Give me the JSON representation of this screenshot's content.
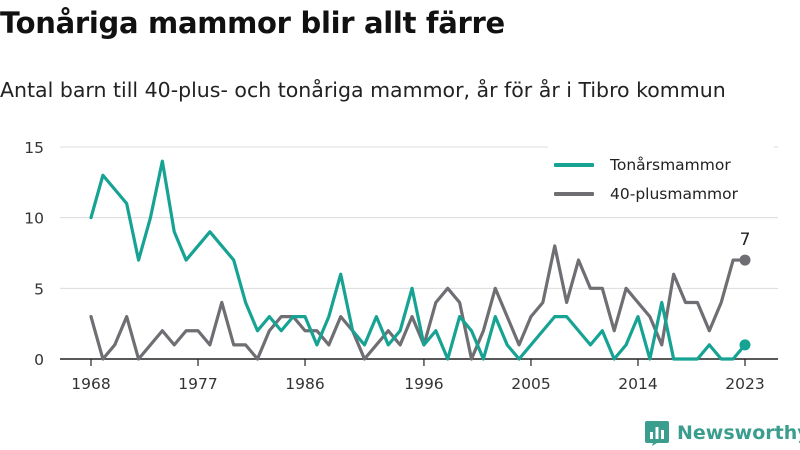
{
  "title": "Tonåriga mammor blir allt färre",
  "subtitle": "Antal barn till 40-plus- och tonåriga mammor, år för år i Tibro kommun",
  "brand": {
    "name": "Newsworthy",
    "icon": "bar-chart-logo-icon",
    "color": "#3b9d8e"
  },
  "chart_data": {
    "type": "line",
    "x": [
      1968,
      1969,
      1970,
      1971,
      1972,
      1973,
      1974,
      1975,
      1976,
      1977,
      1978,
      1979,
      1980,
      1981,
      1982,
      1983,
      1984,
      1985,
      1986,
      1987,
      1988,
      1989,
      1990,
      1991,
      1992,
      1993,
      1994,
      1995,
      1996,
      1997,
      1998,
      1999,
      2000,
      2001,
      2002,
      2003,
      2004,
      2005,
      2006,
      2007,
      2008,
      2009,
      2010,
      2011,
      2012,
      2013,
      2014,
      2015,
      2016,
      2017,
      2018,
      2019,
      2020,
      2021,
      2022,
      2023
    ],
    "x_ticks": [
      1968,
      1977,
      1986,
      1996,
      2005,
      2014,
      2023
    ],
    "y_ticks": [
      0,
      5,
      10,
      15
    ],
    "ylim": [
      0,
      15
    ],
    "grid": "horizontal",
    "legend_position": "top-right",
    "series": [
      {
        "name": "Tonårsmammor",
        "color": "#16a394",
        "values": [
          10,
          13,
          12,
          11,
          7,
          10,
          14,
          9,
          7,
          8,
          9,
          8,
          7,
          4,
          2,
          3,
          2,
          3,
          3,
          1,
          3,
          6,
          2,
          1,
          3,
          1,
          2,
          5,
          1,
          2,
          0,
          3,
          2,
          0,
          3,
          1,
          0,
          1,
          2,
          3,
          3,
          2,
          1,
          2,
          0,
          1,
          3,
          0,
          4,
          0,
          0,
          0,
          1,
          0,
          0,
          1
        ],
        "end_label": ""
      },
      {
        "name": "40-plusmammor",
        "color": "#6e6e73",
        "values": [
          3,
          0,
          1,
          3,
          0,
          1,
          2,
          1,
          2,
          2,
          1,
          4,
          1,
          1,
          0,
          2,
          3,
          3,
          2,
          2,
          1,
          3,
          2,
          0,
          1,
          2,
          1,
          3,
          1,
          4,
          5,
          4,
          0,
          2,
          5,
          3,
          1,
          3,
          4,
          8,
          4,
          7,
          5,
          5,
          2,
          5,
          4,
          3,
          1,
          6,
          4,
          4,
          2,
          4,
          7,
          7
        ],
        "end_label": "7"
      }
    ]
  }
}
